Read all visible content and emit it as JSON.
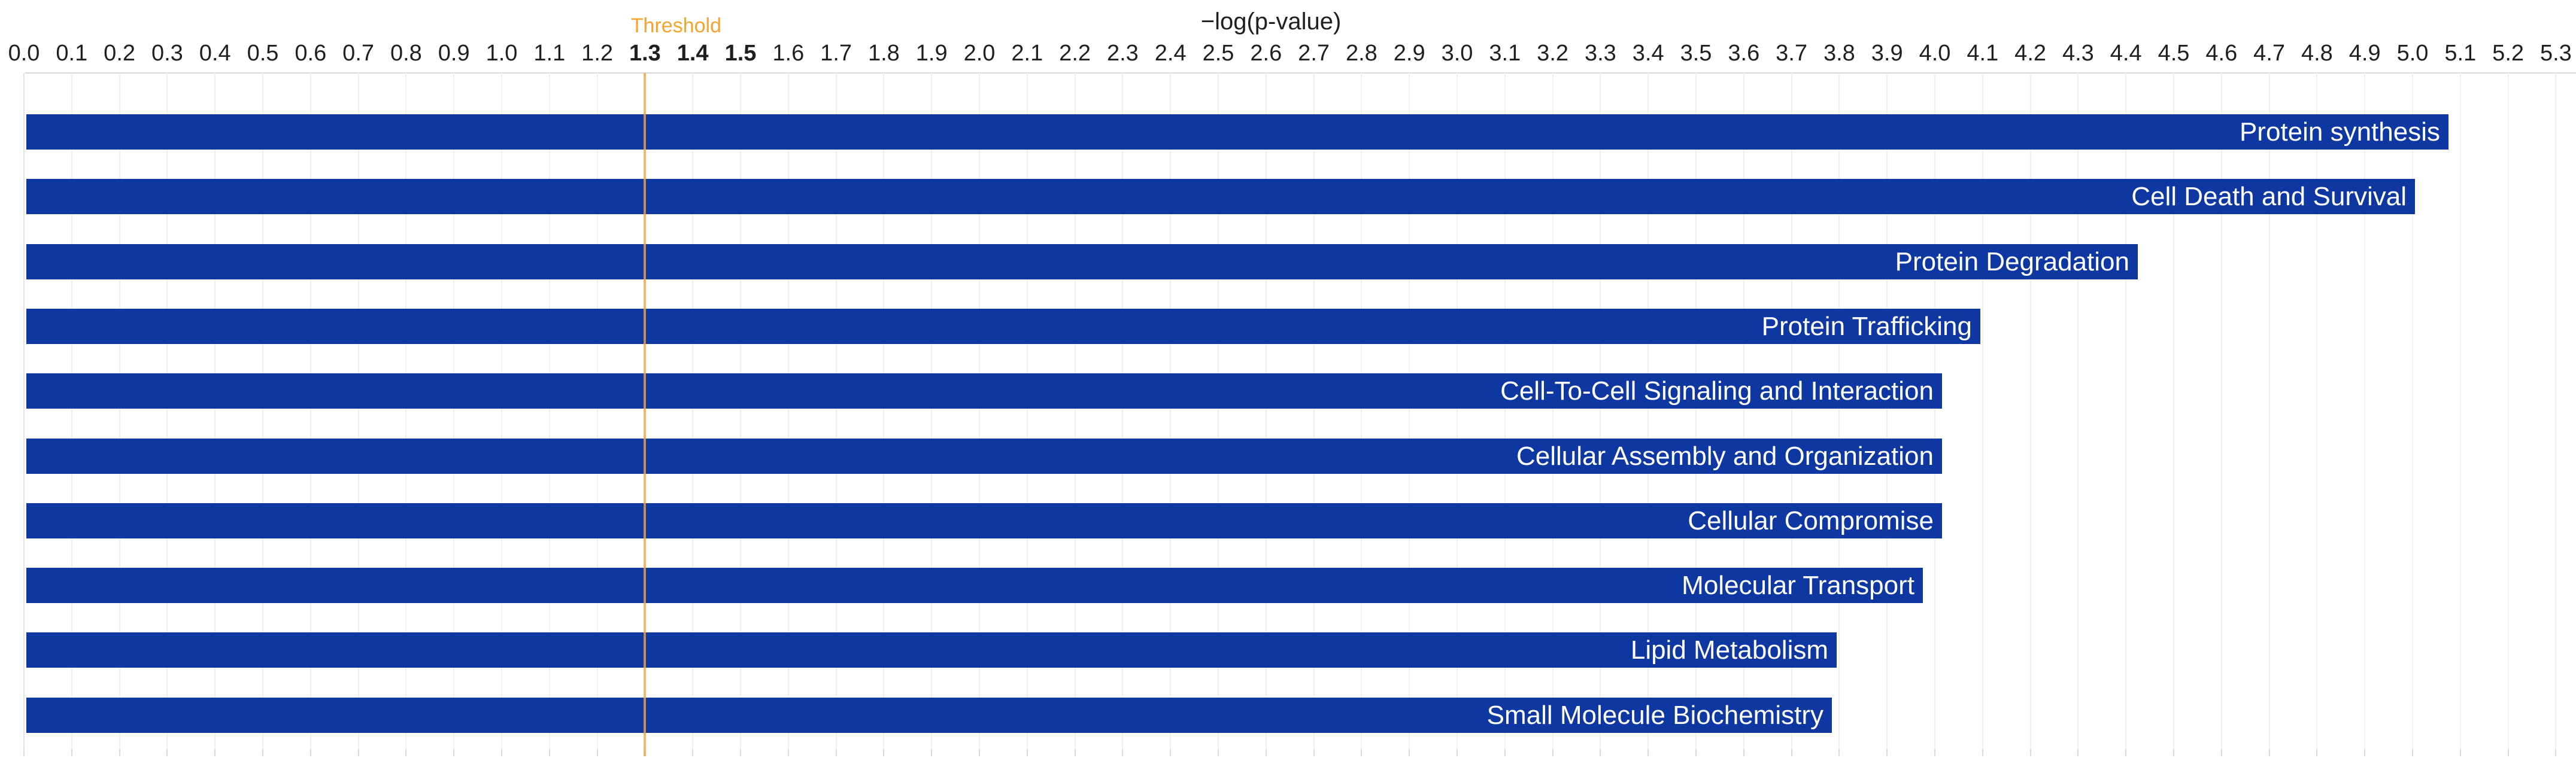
{
  "chart_data": {
    "type": "bar",
    "orientation": "horizontal",
    "title": "−log(p-value)",
    "xlabel": "−log(p-value)",
    "ylabel": "",
    "categories": [
      "Protein synthesis",
      "Cell Death and Survival",
      "Protein Degradation",
      "Protein Trafficking",
      "Cell-To-Cell Signaling and Interaction",
      "Cellular Assembly and Organization",
      "Cellular Compromise",
      "Molecular Transport",
      "Lipid Metabolism",
      "Small Molecule Biochemistry"
    ],
    "values": [
      5.07,
      5.0,
      4.42,
      4.09,
      4.01,
      4.01,
      4.01,
      3.97,
      3.79,
      3.78
    ],
    "xlim": [
      0.0,
      5.3
    ],
    "tick_step": 0.1,
    "x_ticks": [
      "0.0",
      "0.1",
      "0.2",
      "0.3",
      "0.4",
      "0.5",
      "0.6",
      "0.7",
      "0.8",
      "0.9",
      "1.0",
      "1.1",
      "1.2",
      "1.3",
      "1.4",
      "1.5",
      "1.6",
      "1.7",
      "1.8",
      "1.9",
      "2.0",
      "2.1",
      "2.2",
      "2.3",
      "2.4",
      "2.5",
      "2.6",
      "2.7",
      "2.8",
      "2.9",
      "3.0",
      "3.1",
      "3.2",
      "3.3",
      "3.4",
      "3.5",
      "3.6",
      "3.7",
      "3.8",
      "3.9",
      "4.0",
      "4.1",
      "4.2",
      "4.3",
      "4.4",
      "4.5",
      "4.6",
      "4.7",
      "4.8",
      "4.9",
      "5.0",
      "5.1",
      "5.2",
      "5.3"
    ],
    "emphasized_ticks": [
      "1.3",
      "1.4",
      "1.5"
    ],
    "threshold": {
      "label": "Threshold",
      "value": 1.3
    },
    "grid": true,
    "legend": false,
    "bar_labels_inside": true,
    "colors": {
      "bar": "#0f37a2",
      "bar_label": "#ffffff",
      "threshold_text": "#f6a22d",
      "threshold_line": "rgba(245,165,55,0.78)",
      "axis_line": "#d9d9d9",
      "gridline": "#f0f0f0",
      "tick_text": "#1f1f1f"
    }
  }
}
